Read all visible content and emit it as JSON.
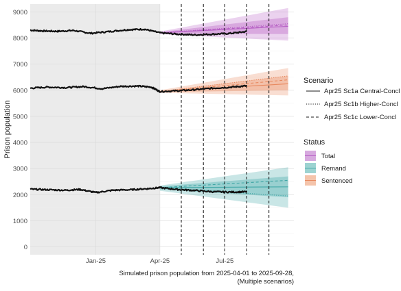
{
  "chart_data": {
    "type": "line",
    "title": "",
    "xlabel": "",
    "ylabel": "Prison population",
    "caption_line1": "Simulated prison population from 2025-04-01 to 2025-09-28,",
    "caption_line2": "(Multiple scenarios)",
    "xlim": [
      "2024-10-01",
      "2025-10-06"
    ],
    "ylim": [
      -300,
      9300
    ],
    "x_ticks": [
      {
        "date": "2025-01-01",
        "label": "Jan-25"
      },
      {
        "date": "2025-04-01",
        "label": "Apr-25"
      },
      {
        "date": "2025-07-01",
        "label": "Jul-25"
      }
    ],
    "y_ticks": [
      0,
      1000,
      2000,
      3000,
      4000,
      5000,
      6000,
      7000,
      8000,
      9000
    ],
    "grid": true,
    "shaded_history": {
      "from": "2024-10-01",
      "to": "2025-04-01"
    },
    "vertical_lines": [
      "2025-05-01",
      "2025-06-01",
      "2025-07-01",
      "2025-08-01",
      "2025-09-01"
    ],
    "projection": {
      "start": "2025-04-01",
      "end": "2025-09-28"
    },
    "status_series": [
      {
        "name": "Total",
        "color": "#b65ec4",
        "observed": [
          {
            "x": "2024-10-01",
            "y": 8300
          },
          {
            "x": "2024-10-20",
            "y": 8270
          },
          {
            "x": "2024-11-10",
            "y": 8260
          },
          {
            "x": "2024-12-01",
            "y": 8290
          },
          {
            "x": "2024-12-25",
            "y": 8180
          },
          {
            "x": "2025-01-20",
            "y": 8250
          },
          {
            "x": "2025-02-15",
            "y": 8320
          },
          {
            "x": "2025-03-10",
            "y": 8340
          },
          {
            "x": "2025-04-01",
            "y": 8200
          },
          {
            "x": "2025-04-25",
            "y": 8150
          },
          {
            "x": "2025-05-20",
            "y": 8120
          },
          {
            "x": "2025-06-15",
            "y": 8150
          },
          {
            "x": "2025-07-10",
            "y": 8180
          },
          {
            "x": "2025-08-01",
            "y": 8250
          }
        ],
        "projection_start": 8200,
        "central_end": 8450,
        "higher_end": 8550,
        "lower_end": 8500,
        "band_outer": [
          [
            8150,
            8250
          ],
          [
            7900,
            9150
          ]
        ],
        "band_inner": [
          [
            8170,
            8230
          ],
          [
            8150,
            8800
          ]
        ]
      },
      {
        "name": "Sentenced",
        "color": "#e8895f",
        "observed": [
          {
            "x": "2024-10-01",
            "y": 6080
          },
          {
            "x": "2024-10-25",
            "y": 6120
          },
          {
            "x": "2024-11-20",
            "y": 6100
          },
          {
            "x": "2024-12-15",
            "y": 6140
          },
          {
            "x": "2025-01-10",
            "y": 6060
          },
          {
            "x": "2025-02-05",
            "y": 6150
          },
          {
            "x": "2025-03-01",
            "y": 6160
          },
          {
            "x": "2025-03-20",
            "y": 6120
          },
          {
            "x": "2025-04-01",
            "y": 5950
          },
          {
            "x": "2025-04-25",
            "y": 5980
          },
          {
            "x": "2025-05-20",
            "y": 6020
          },
          {
            "x": "2025-06-15",
            "y": 6080
          },
          {
            "x": "2025-07-10",
            "y": 6120
          },
          {
            "x": "2025-08-01",
            "y": 6170
          }
        ],
        "projection_start": 5950,
        "central_end": 6250,
        "higher_end": 6550,
        "lower_end": 6400,
        "band_outer": [
          [
            5900,
            6000
          ],
          [
            5800,
            6850
          ]
        ],
        "band_inner": [
          [
            5930,
            5970
          ],
          [
            6000,
            6550
          ]
        ]
      },
      {
        "name": "Remand",
        "color": "#3ea6a5",
        "observed": [
          {
            "x": "2024-10-01",
            "y": 2210
          },
          {
            "x": "2024-10-25",
            "y": 2190
          },
          {
            "x": "2024-11-20",
            "y": 2170
          },
          {
            "x": "2024-12-10",
            "y": 2200
          },
          {
            "x": "2025-01-01",
            "y": 2080
          },
          {
            "x": "2025-01-25",
            "y": 2170
          },
          {
            "x": "2025-02-20",
            "y": 2190
          },
          {
            "x": "2025-03-15",
            "y": 2230
          },
          {
            "x": "2025-04-01",
            "y": 2270
          },
          {
            "x": "2025-04-25",
            "y": 2200
          },
          {
            "x": "2025-05-20",
            "y": 2160
          },
          {
            "x": "2025-06-15",
            "y": 2110
          },
          {
            "x": "2025-07-10",
            "y": 2100
          },
          {
            "x": "2025-08-01",
            "y": 2110
          }
        ],
        "projection_start": 2270,
        "central_end": 2300,
        "higher_end": 1950,
        "lower_end": 2550,
        "band_outer": [
          [
            2150,
            2350
          ],
          [
            1500,
            3050
          ]
        ],
        "band_inner": [
          [
            2200,
            2320
          ],
          [
            1900,
            2700
          ]
        ]
      }
    ],
    "legend_scenario": {
      "title": "Scenario",
      "items": [
        {
          "label": "Apr25 Sc1a Central-Concl",
          "dash": "solid"
        },
        {
          "label": "Apr25 Sc1b Higher-Concl",
          "dash": "dotted"
        },
        {
          "label": "Apr25 Sc1c Lower-Concl",
          "dash": "dashed"
        }
      ]
    },
    "legend_status": {
      "title": "Status",
      "items": [
        {
          "label": "Total",
          "fill": "#c990d3",
          "line": "#b65ec4"
        },
        {
          "label": "Remand",
          "fill": "#7fc6c3",
          "line": "#3ea6a5"
        },
        {
          "label": "Sentenced",
          "fill": "#f1b596",
          "line": "#e8895f"
        }
      ]
    },
    "legend_position": "right"
  }
}
